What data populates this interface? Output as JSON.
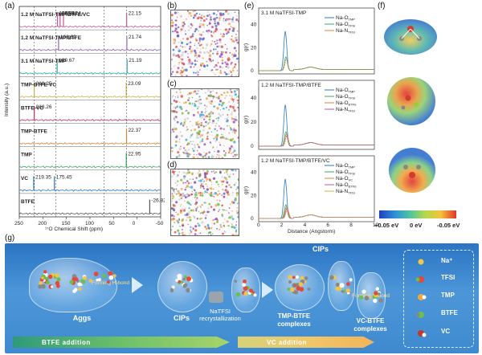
{
  "panels": {
    "a": "(a)",
    "b": "(b)",
    "c": "(c)",
    "d": "(d)",
    "e": "(e)",
    "f": "(f)",
    "g": "(g)"
  },
  "panel_a": {
    "ylabel": "Intensity (a.u.)",
    "xlabel": "¹⁷O Chemical Shift (ppm)",
    "xticks": [
      "250",
      "200",
      "150",
      "100",
      "50",
      "0",
      "-50"
    ],
    "traces": [
      {
        "name": "1.2 M NaTFSI-TMP/BTFE/VC",
        "color": "#c2579a",
        "peaks": [
          "168.81",
          "163.41",
          "156.24",
          "22.15"
        ]
      },
      {
        "name": "1.2 M NaTFSI-TMP/BTFE",
        "color": "#8a64b0",
        "peaks": [
          "166.62",
          "21.74"
        ]
      },
      {
        "name": "3.1 M NaTFSI-TMP",
        "color": "#2aa6a0",
        "peaks": [
          "169.67",
          "21.19"
        ]
      },
      {
        "name": "TMP-BTFE-VC",
        "color": "#c9b24a",
        "peaks": [
          "218.25",
          "23.09"
        ]
      },
      {
        "name": "BTFE-VC",
        "color": "#c2335a",
        "peaks": [
          "218.26"
        ]
      },
      {
        "name": "TMP-BTFE",
        "color": "#d8873a",
        "peaks": [
          "22.37"
        ]
      },
      {
        "name": "TMP",
        "color": "#3aa860",
        "peaks": [
          "22.95"
        ]
      },
      {
        "name": "VC",
        "color": "#2a78c2",
        "peaks": [
          "219.35",
          "175.45"
        ]
      },
      {
        "name": "BTFE",
        "color": "#555555",
        "peaks": [
          "-26.828"
        ]
      }
    ]
  },
  "panel_e": {
    "ylabel": "g(r)",
    "xlabel": "Distance (Angstorm)",
    "xticks": [
      "0",
      "2",
      "4",
      "6",
      "8",
      "10"
    ],
    "yticks": [
      "0",
      "20",
      "40"
    ],
    "subplots": [
      {
        "title": "3.1 M NaTFSI-TMP",
        "legend": [
          "Na-O",
          "Na-O",
          "Na-N"
        ],
        "subs": [
          "TMP",
          "TFSI",
          "TFSI"
        ]
      },
      {
        "title": "1.2 M NaTFSI-TMP/BTFE",
        "legend": [
          "Na-O",
          "Na-O",
          "Na-O",
          "Na-N"
        ],
        "subs": [
          "TMP",
          "TFSI",
          "BTFE",
          "TFSI"
        ]
      },
      {
        "title": "1.2 M NaTFSI-TMP/BTFE/VC",
        "legend": [
          "Na-O",
          "Na-O",
          "Na-O",
          "Na-O",
          "Na-N"
        ],
        "subs": [
          "TMP",
          "TFSI",
          "VC",
          "BTFE",
          "TFSI"
        ]
      }
    ]
  },
  "panel_f": {
    "scale_labels": [
      "+0.05 eV",
      "0 eV",
      "-0.05 eV"
    ]
  },
  "panel_g": {
    "aggs": "Aggs",
    "cips": "CIPs",
    "cips_top": "CIPs",
    "recryst": "NaTFSI recrystallization",
    "tmp_btfe": "TMP-BTFE complexes",
    "vc_btfe": "VC-BTFE complexes",
    "hbond1": "Forming H-bond",
    "hbond2": "Forming H-bond",
    "btfe_addition": "BTFE addition",
    "vc_addition": "VC addition",
    "legend": [
      "Na⁺",
      "TFSI",
      "TMP",
      "BTFE",
      "VC"
    ]
  },
  "colors": {
    "legend_colors": [
      "#f4c542",
      "#e24a3b",
      "#ffffff",
      "#6cc04a",
      "#c0392b"
    ]
  }
}
